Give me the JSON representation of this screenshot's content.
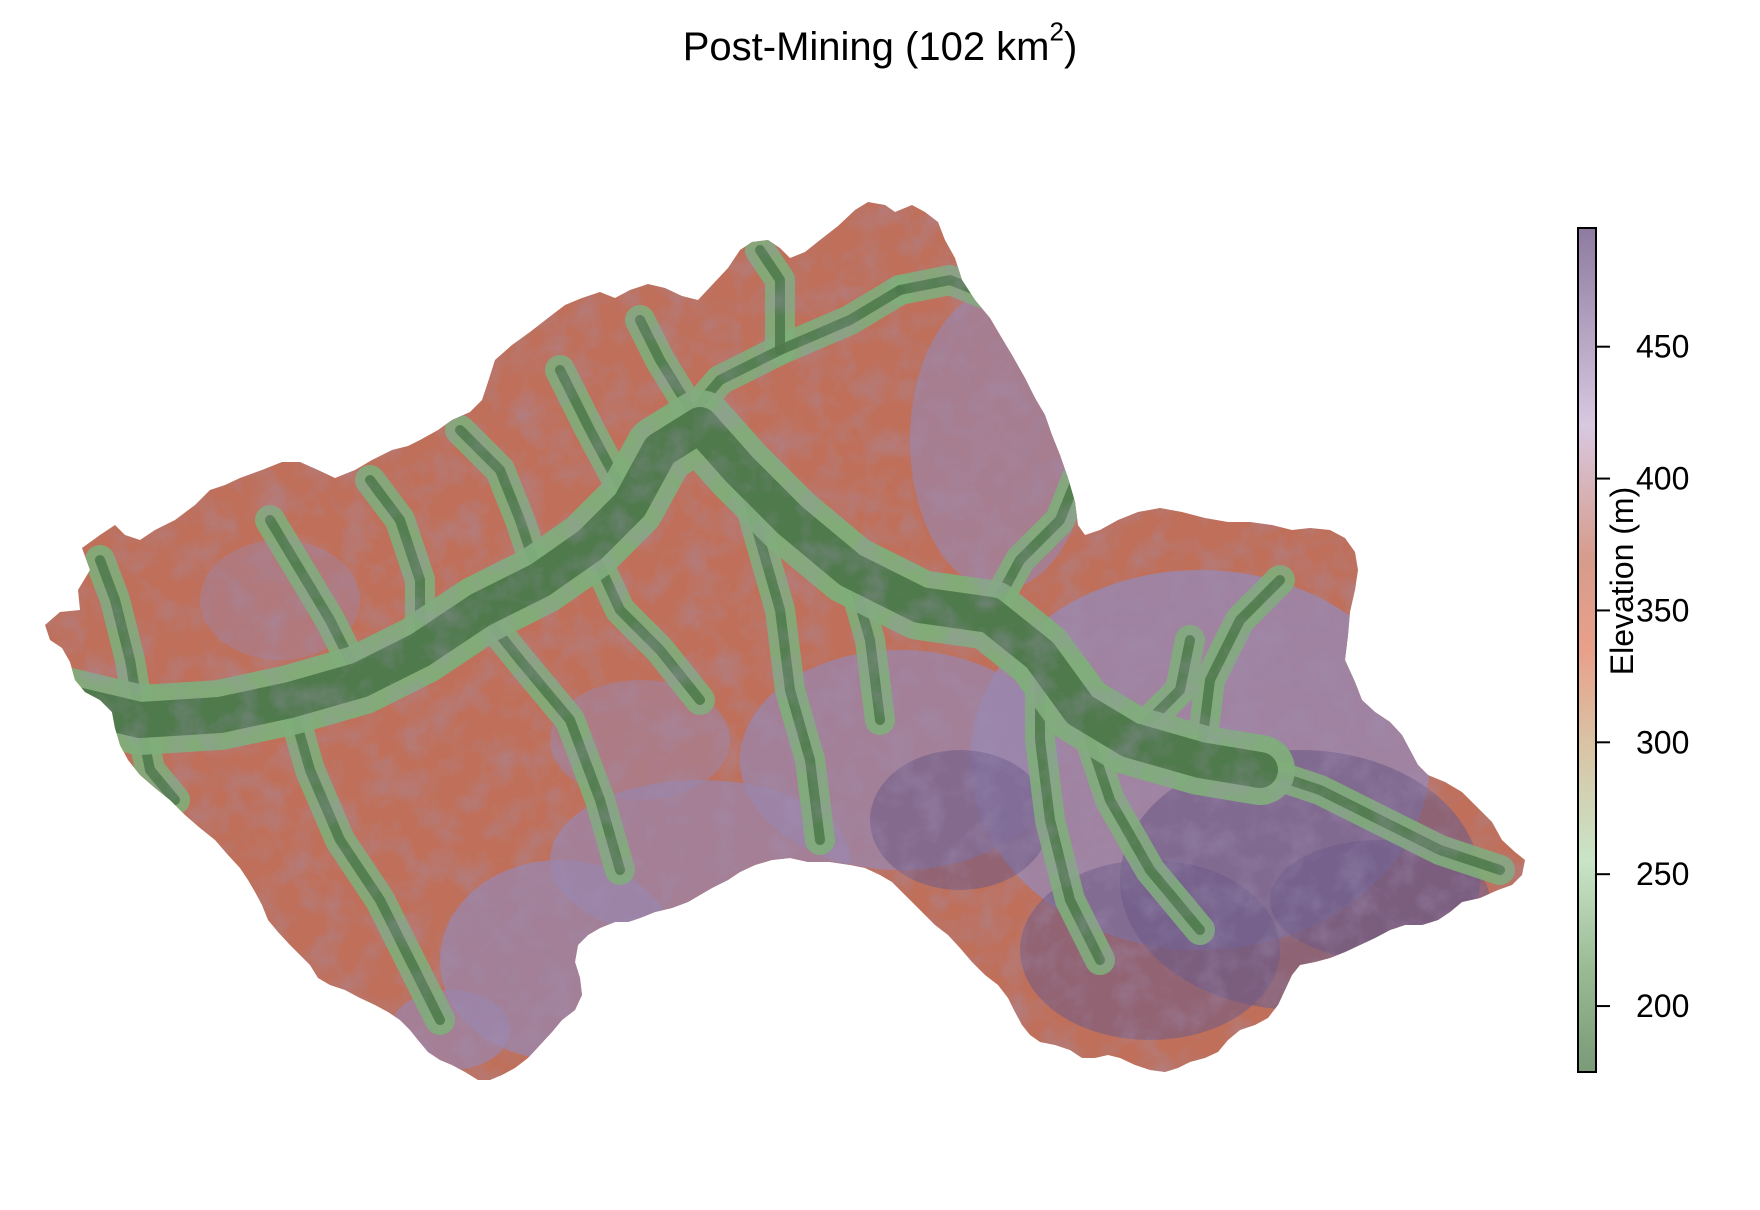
{
  "title": {
    "main": "Post-Mining (102 km",
    "superscript": "2",
    "close": ")"
  },
  "legend": {
    "title": "Elevation (m)",
    "range": [
      175,
      495
    ],
    "ticks": [
      {
        "value": 200,
        "label": "200"
      },
      {
        "value": 250,
        "label": "250"
      },
      {
        "value": 300,
        "label": "300"
      },
      {
        "value": 350,
        "label": "350"
      },
      {
        "value": 400,
        "label": "400"
      },
      {
        "value": 450,
        "label": "450"
      }
    ],
    "color_stops": [
      {
        "value": 175,
        "color": "#7a9a78"
      },
      {
        "value": 215,
        "color": "#9bbb95"
      },
      {
        "value": 255,
        "color": "#c9e4c7"
      },
      {
        "value": 300,
        "color": "#d9c3a4"
      },
      {
        "value": 335,
        "color": "#e8a08a"
      },
      {
        "value": 370,
        "color": "#d69c8c"
      },
      {
        "value": 420,
        "color": "#d8c8e0"
      },
      {
        "value": 495,
        "color": "#8e7ba0"
      }
    ]
  },
  "map": {
    "colors": {
      "valley": "#4f7a4c",
      "lowland": "#7fae7a",
      "slope": "#c0705a",
      "ridge": "#9a86ae",
      "peak": "#6c5a86"
    }
  }
}
